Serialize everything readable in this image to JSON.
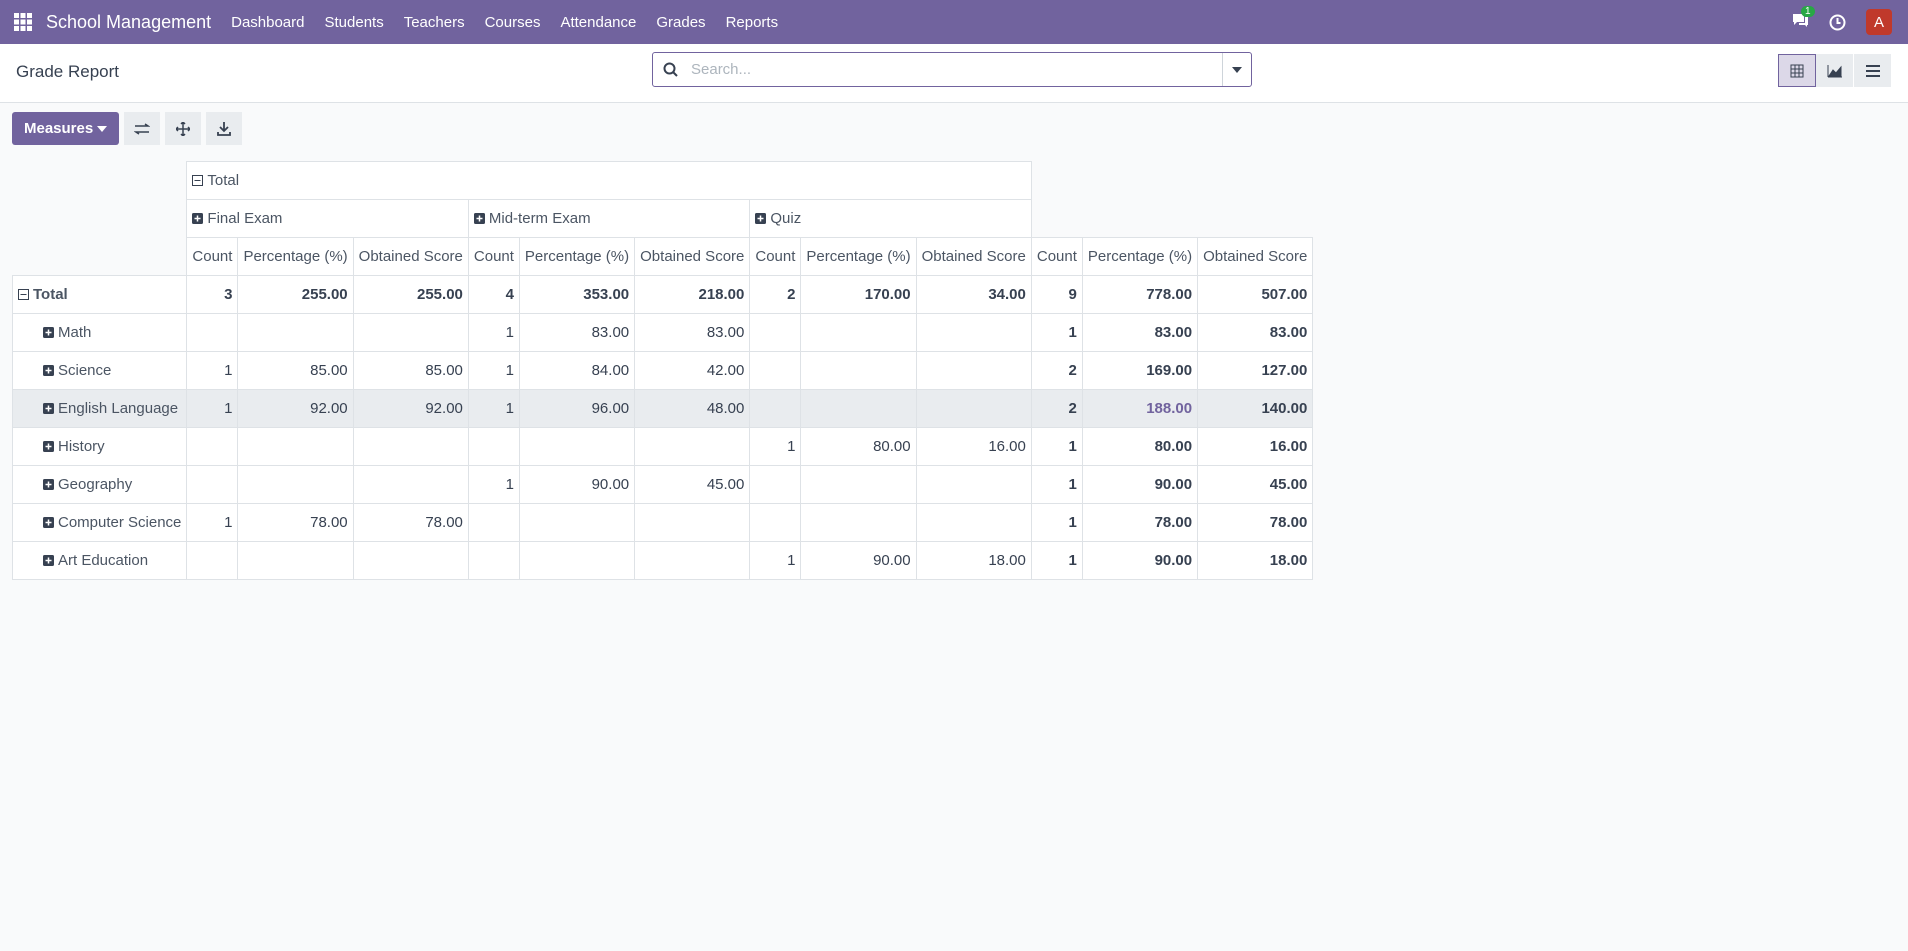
{
  "navbar": {
    "brand": "School Management",
    "menu": [
      "Dashboard",
      "Students",
      "Teachers",
      "Courses",
      "Attendance",
      "Grades",
      "Reports"
    ],
    "notification_count": "1",
    "avatar": "A"
  },
  "control_panel": {
    "title": "Grade Report",
    "search_placeholder": "Search...",
    "measures_button": "Measures"
  },
  "pivot": {
    "col_root": "Total",
    "col_groups": [
      "Final Exam",
      "Mid-term Exam",
      "Quiz"
    ],
    "measures": [
      "Count",
      "Percentage (%)",
      "Obtained Score"
    ],
    "rows": [
      {
        "label": "Total",
        "cells": [
          3,
          "255.00",
          "255.00",
          4,
          "353.00",
          "218.00",
          2,
          "170.00",
          "34.00",
          9,
          "778.00",
          "507.00"
        ]
      },
      {
        "label": "Math",
        "cells": [
          null,
          null,
          null,
          1,
          "83.00",
          "83.00",
          null,
          null,
          null,
          1,
          "83.00",
          "83.00"
        ]
      },
      {
        "label": "Science",
        "cells": [
          1,
          "85.00",
          "85.00",
          1,
          "84.00",
          "42.00",
          null,
          null,
          null,
          2,
          "169.00",
          "127.00"
        ]
      },
      {
        "label": "English Language",
        "cells": [
          1,
          "92.00",
          "92.00",
          1,
          "96.00",
          "48.00",
          null,
          null,
          null,
          2,
          "188.00",
          "140.00"
        ]
      },
      {
        "label": "History",
        "cells": [
          null,
          null,
          null,
          null,
          null,
          null,
          1,
          "80.00",
          "16.00",
          1,
          "80.00",
          "16.00"
        ]
      },
      {
        "label": "Geography",
        "cells": [
          null,
          null,
          null,
          1,
          "90.00",
          "45.00",
          null,
          null,
          null,
          1,
          "90.00",
          "45.00"
        ]
      },
      {
        "label": "Computer Science",
        "cells": [
          1,
          "78.00",
          "78.00",
          null,
          null,
          null,
          null,
          null,
          null,
          1,
          "78.00",
          "78.00"
        ]
      },
      {
        "label": "Art Education",
        "cells": [
          null,
          null,
          null,
          null,
          null,
          null,
          1,
          "90.00",
          "18.00",
          1,
          "90.00",
          "18.00"
        ]
      }
    ]
  }
}
